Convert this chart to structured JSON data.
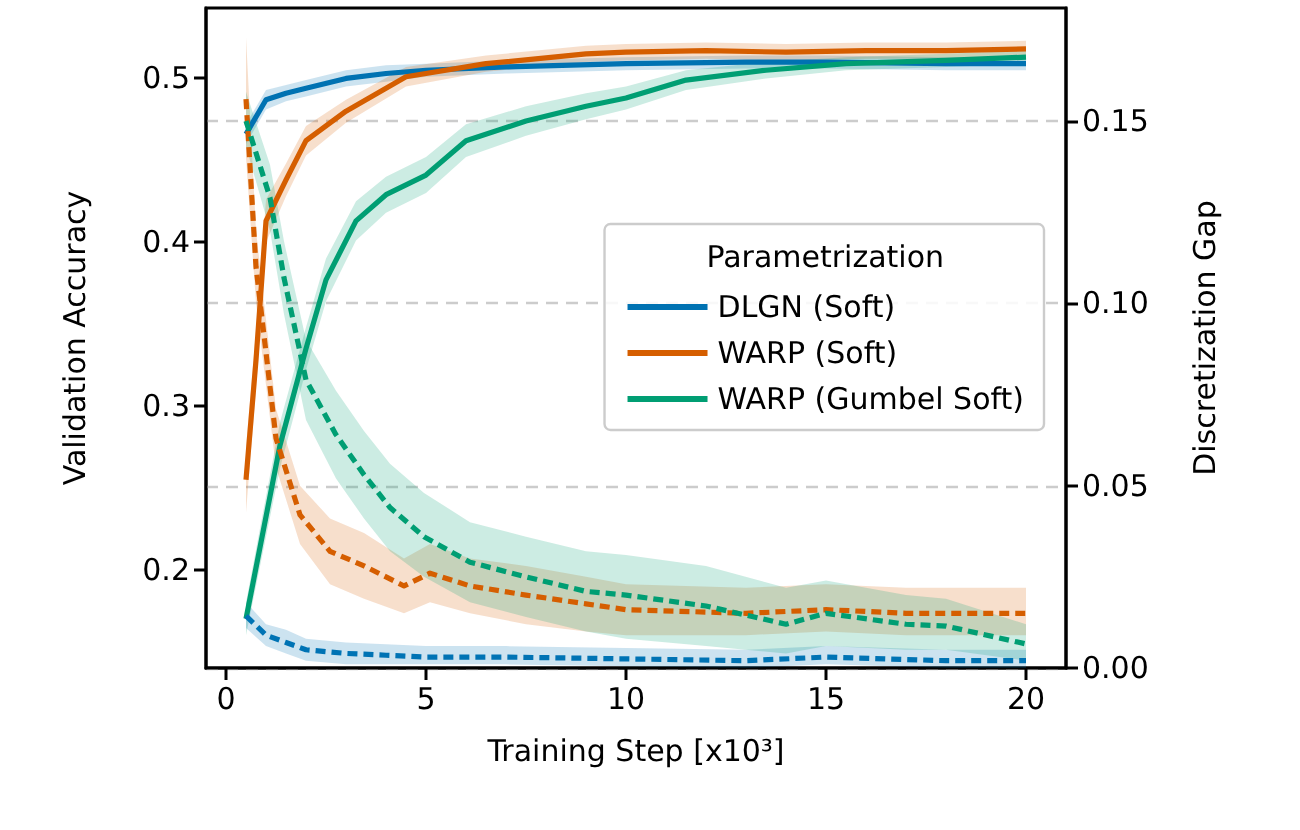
{
  "chart_data": {
    "type": "line",
    "xlabel": "Training Step [x10³]",
    "ylabel": "Validation Accuracy",
    "y2label": "Discretization Gap",
    "legend_title": "Parametrization",
    "legend": "right",
    "grid": "y2",
    "marker": "none",
    "xlim": [
      -0.5,
      21
    ],
    "xticks": [
      0,
      5,
      10,
      15,
      20
    ],
    "ylim": [
      0.14,
      0.543
    ],
    "yticks": [
      0.2,
      0.3,
      0.4,
      0.5
    ],
    "y2lim": [
      0,
      0.181
    ],
    "y2ticks": [
      {
        "value": 0,
        "label": "0.00"
      },
      {
        "value": 0.05,
        "label": "0.05"
      },
      {
        "value": 0.1,
        "label": "0.10"
      },
      {
        "value": 0.15,
        "label": "0.15"
      }
    ],
    "series": [
      {
        "name": "DLGN (Soft)",
        "color": "#0072b2",
        "line_style": "solid",
        "x": [
          0.5,
          1,
          1.5,
          2,
          3,
          4,
          5,
          7,
          10,
          13,
          15,
          18,
          20
        ],
        "values": [
          0.466,
          0.487,
          0.491,
          0.494,
          0.5,
          0.503,
          0.505,
          0.507,
          0.509,
          0.51,
          0.51,
          0.509,
          0.509
        ],
        "lower": [
          0.46,
          0.481,
          0.486,
          0.489,
          0.495,
          0.498,
          0.501,
          0.503,
          0.505,
          0.506,
          0.506,
          0.505,
          0.505
        ],
        "upper": [
          0.472,
          0.493,
          0.496,
          0.499,
          0.505,
          0.508,
          0.509,
          0.511,
          0.513,
          0.514,
          0.514,
          0.513,
          0.513
        ]
      },
      {
        "name": "WARP (Soft)",
        "color": "#d55e00",
        "line_style": "solid",
        "x": [
          0.5,
          0.75,
          1,
          1.5,
          2,
          3,
          4.5,
          6.5,
          9,
          10,
          12,
          14,
          16,
          18,
          20
        ],
        "values": [
          0.255,
          0.328,
          0.413,
          0.438,
          0.462,
          0.48,
          0.501,
          0.509,
          0.515,
          0.516,
          0.517,
          0.516,
          0.517,
          0.517,
          0.518
        ],
        "lower": [
          0.235,
          0.31,
          0.4,
          0.428,
          0.453,
          0.473,
          0.495,
          0.504,
          0.51,
          0.511,
          0.512,
          0.511,
          0.512,
          0.512,
          0.513
        ],
        "upper": [
          0.275,
          0.346,
          0.426,
          0.448,
          0.471,
          0.487,
          0.507,
          0.514,
          0.52,
          0.521,
          0.522,
          0.521,
          0.522,
          0.522,
          0.523
        ]
      },
      {
        "name": "WARP (Gumbel Soft)",
        "color": "#009e73",
        "line_style": "solid",
        "x": [
          0.5,
          1.35,
          2,
          2.5,
          3.25,
          4,
          5,
          6,
          7.5,
          9,
          10,
          11.5,
          13.5,
          15.5,
          18,
          20
        ],
        "values": [
          0.17,
          0.276,
          0.335,
          0.377,
          0.413,
          0.429,
          0.441,
          0.462,
          0.474,
          0.483,
          0.488,
          0.499,
          0.505,
          0.509,
          0.511,
          0.513
        ],
        "lower": [
          0.16,
          0.262,
          0.322,
          0.364,
          0.401,
          0.418,
          0.43,
          0.452,
          0.465,
          0.475,
          0.481,
          0.493,
          0.5,
          0.505,
          0.507,
          0.509
        ],
        "upper": [
          0.18,
          0.29,
          0.348,
          0.39,
          0.425,
          0.44,
          0.452,
          0.472,
          0.483,
          0.491,
          0.495,
          0.505,
          0.51,
          0.513,
          0.515,
          0.517
        ]
      },
      {
        "color": "#0073b4",
        "line_style": "dashed",
        "axis": "y2",
        "x": [
          0.5,
          1,
          1.5,
          2,
          3,
          4,
          5,
          7,
          10,
          13,
          15,
          18,
          20
        ],
        "values": [
          0.0143,
          0.009,
          0.007,
          0.005,
          0.004,
          0.0035,
          0.003,
          0.003,
          0.0025,
          0.002,
          0.003,
          0.002,
          0.002
        ],
        "lower": [
          0.011,
          0.006,
          0.004,
          0.002,
          0.001,
          0.001,
          0.001,
          0.001,
          0.0005,
          0,
          0.001,
          0,
          0
        ],
        "upper": [
          0.018,
          0.012,
          0.0105,
          0.008,
          0.007,
          0.0065,
          0.006,
          0.006,
          0.0055,
          0.005,
          0.006,
          0.005,
          0.005
        ]
      },
      {
        "color": "#d55e00",
        "line_style": "dashed",
        "axis": "y2",
        "x": [
          0.5,
          0.75,
          1.25,
          1.85,
          2.6,
          3.45,
          4.45,
          5.1,
          6.1,
          7.5,
          9,
          10,
          13,
          15,
          17,
          20
        ],
        "values": [
          0.156,
          0.11,
          0.063,
          0.042,
          0.032,
          0.028,
          0.0225,
          0.026,
          0.0225,
          0.02,
          0.0176,
          0.016,
          0.015,
          0.016,
          0.015,
          0.015
        ],
        "lower": [
          0.14,
          0.1,
          0.055,
          0.034,
          0.023,
          0.019,
          0.015,
          0.018,
          0.015,
          0.012,
          0.01,
          0.009,
          0.009,
          0.01,
          0.009,
          0.009
        ],
        "upper": [
          0.173,
          0.12,
          0.071,
          0.05,
          0.041,
          0.037,
          0.03,
          0.034,
          0.03,
          0.028,
          0.025,
          0.023,
          0.022,
          0.023,
          0.022,
          0.022
        ]
      },
      {
        "color": "#009e73",
        "line_style": "dashed",
        "axis": "y2",
        "x": [
          0.5,
          1.1,
          1.45,
          2,
          2.75,
          3.45,
          4.1,
          4.95,
          6.1,
          7.5,
          9,
          10,
          12,
          14,
          15,
          17,
          18,
          20
        ],
        "values": [
          0.15,
          0.129,
          0.107,
          0.079,
          0.064,
          0.053,
          0.044,
          0.036,
          0.029,
          0.025,
          0.021,
          0.02,
          0.017,
          0.012,
          0.015,
          0.012,
          0.0115,
          0.0066
        ],
        "lower": [
          0.143,
          0.12,
          0.097,
          0.068,
          0.052,
          0.041,
          0.032,
          0.025,
          0.018,
          0.014,
          0.01,
          0.008,
          0.006,
          0.004,
          0.006,
          0.005,
          0.005,
          0.002
        ],
        "upper": [
          0.158,
          0.138,
          0.117,
          0.09,
          0.076,
          0.065,
          0.056,
          0.048,
          0.04,
          0.036,
          0.032,
          0.031,
          0.028,
          0.022,
          0.024,
          0.02,
          0.019,
          0.012
        ]
      }
    ]
  }
}
